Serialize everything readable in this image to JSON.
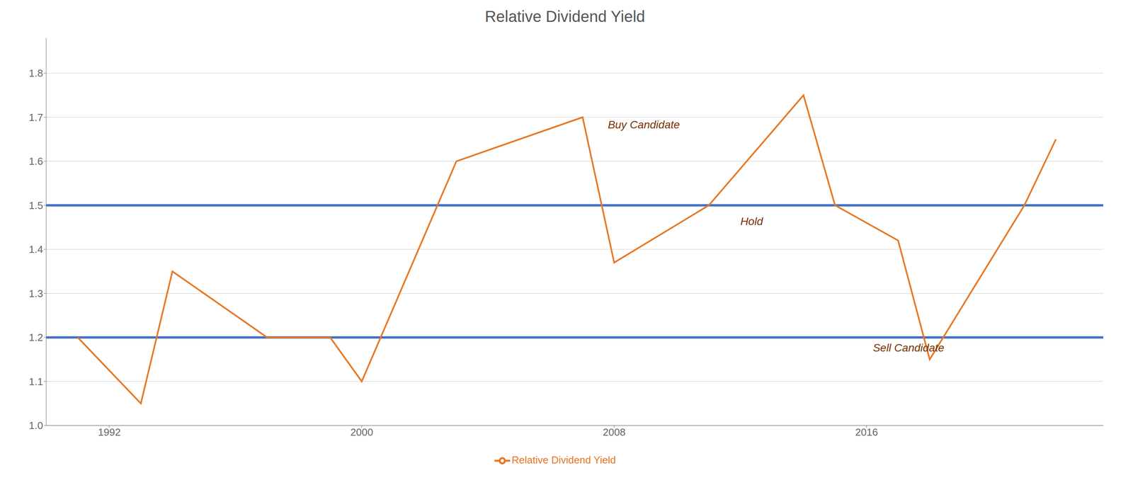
{
  "chart_data": {
    "type": "line",
    "title": "Relative Dividend Yield",
    "x": [
      1991,
      1993,
      1994,
      1997,
      1999,
      2000,
      2003,
      2007,
      2008,
      2011,
      2014,
      2015,
      2017,
      2018,
      2021,
      2022
    ],
    "series": [
      {
        "name": "Relative Dividend Yield",
        "color": "#e87722",
        "values": [
          1.2,
          1.05,
          1.35,
          1.2,
          1.2,
          1.1,
          1.6,
          1.7,
          1.37,
          1.5,
          1.75,
          1.5,
          1.42,
          1.15,
          1.5,
          1.65
        ]
      }
    ],
    "xlim": [
      1990.0,
      2023.5
    ],
    "ylim": [
      1.0,
      1.88
    ],
    "xticks": [
      1992,
      2000,
      2008,
      2016
    ],
    "yticks": [
      {
        "value": 1.0,
        "label": "1.0"
      },
      1.1,
      1.2,
      1.3,
      1.4,
      1.5,
      1.6,
      1.7,
      1.8
    ],
    "grid": true,
    "legend": "bottom",
    "hlines": [
      {
        "value": 1.5,
        "color": "#4472c4"
      },
      {
        "value": 1.2,
        "color": "#4472c4"
      }
    ],
    "annotations": [
      {
        "text": "Buy Candidate",
        "x": 2007.8,
        "y": 1.675,
        "color": "#7b3200"
      },
      {
        "text": "Hold",
        "x": 2012.0,
        "y": 1.455,
        "color": "#7b3200"
      },
      {
        "text": "Sell Candidate",
        "x": 2016.2,
        "y": 1.168,
        "color": "#7b3200"
      }
    ]
  }
}
